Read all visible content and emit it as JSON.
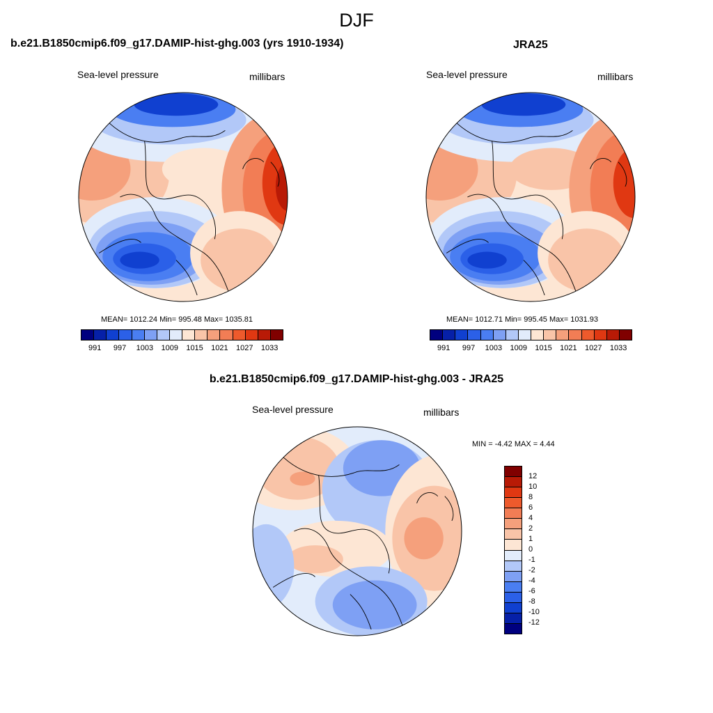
{
  "title": "DJF",
  "units": "millibars",
  "variable": "Sea-level pressure",
  "colors": {
    "abs_palette": [
      "#00007f",
      "#0620a8",
      "#1040d0",
      "#2b60e8",
      "#4a7ef2",
      "#7ea0f4",
      "#b2c8f8",
      "#e2ecfb",
      "#fde6d4",
      "#f9c4a8",
      "#f5a07c",
      "#f27d55",
      "#ee5a2c",
      "#e03812",
      "#b81a06",
      "#800000"
    ],
    "diff_palette": [
      "#800000",
      "#b81a06",
      "#e03812",
      "#ee5a2c",
      "#f27d55",
      "#f5a07c",
      "#f9c4a8",
      "#fde6d4",
      "#e2ecfb",
      "#b2c8f8",
      "#7ea0f4",
      "#4a7ef2",
      "#2b60e8",
      "#1040d0",
      "#0620a8",
      "#00007f"
    ]
  },
  "panels": {
    "model": {
      "title": "b.e21.B1850cmip6.f09_g17.DAMIP-hist-ghg.003 (yrs 1910-1934)",
      "variable": "Sea-level pressure",
      "units": "millibars",
      "stats": "MEAN= 1012.24  Min= 995.48  Max= 1035.81"
    },
    "obs": {
      "title": "JRA25",
      "variable": "Sea-level pressure",
      "units": "millibars",
      "stats": "MEAN= 1012.71  Min= 995.45  Max= 1031.93"
    },
    "diff": {
      "title": "b.e21.B1850cmip6.f09_g17.DAMIP-hist-ghg.003 - JRA25",
      "variable": "Sea-level pressure",
      "units": "millibars",
      "stats": "MIN =  -4.42 MAX =   4.44"
    }
  },
  "abs_colorbar": {
    "tick_labels": [
      "991",
      "997",
      "1003",
      "1009",
      "1015",
      "1021",
      "1027",
      "1033"
    ]
  },
  "diff_colorbar": {
    "tick_labels": [
      "12",
      "10",
      "8",
      "6",
      "4",
      "2",
      "1",
      "0",
      "-1",
      "-2",
      "-4",
      "-6",
      "-8",
      "-10",
      "-12"
    ]
  }
}
